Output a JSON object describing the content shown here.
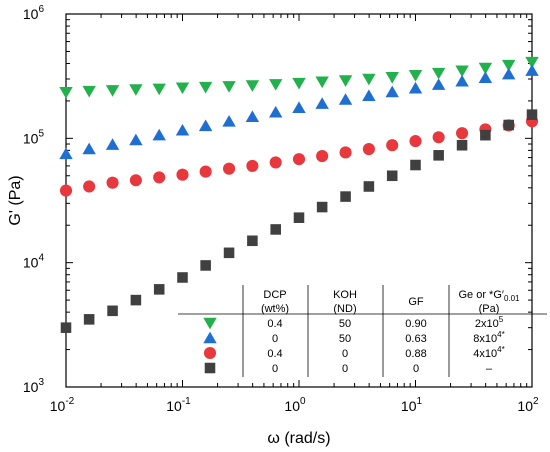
{
  "chart_data": {
    "type": "scatter",
    "xlabel": "ω (rad/s)",
    "ylabel": "G' (Pa)",
    "x_scale": "log",
    "y_scale": "log",
    "xlim": [
      0.01,
      100
    ],
    "ylim": [
      1000,
      1000000
    ],
    "grid": false,
    "x_ticks": [
      "10",
      "10",
      "10",
      "10",
      "10"
    ],
    "x_tick_exponents": [
      "-2",
      "-1",
      "0",
      "1",
      "2"
    ],
    "y_ticks": [
      "10",
      "10",
      "10",
      "10"
    ],
    "y_tick_exponents": [
      "3",
      "4",
      "5",
      "6"
    ],
    "x_values": [
      0.01,
      0.0158,
      0.0251,
      0.0398,
      0.0631,
      0.1,
      0.158,
      0.251,
      0.398,
      0.631,
      1.0,
      1.58,
      2.51,
      3.98,
      6.31,
      10.0,
      15.8,
      25.1,
      39.8,
      63.1,
      100.0
    ],
    "series": [
      {
        "marker": "triangle-down",
        "color": "#22b14c",
        "values": [
          235000,
          240000,
          243000,
          247000,
          250000,
          255000,
          258000,
          262000,
          266000,
          272000,
          278000,
          285000,
          292000,
          300000,
          310000,
          322000,
          335000,
          350000,
          368000,
          388000,
          410000
        ]
      },
      {
        "marker": "triangle-up",
        "color": "#1f6fd1",
        "values": [
          75000,
          82000,
          89000,
          97000,
          106000,
          116000,
          126000,
          137000,
          149000,
          162000,
          176000,
          190000,
          205000,
          220000,
          236000,
          253000,
          270000,
          288000,
          307000,
          328000,
          350000
        ]
      },
      {
        "marker": "circle",
        "color": "#e8373d",
        "values": [
          38000,
          41000,
          44000,
          46000,
          48500,
          51000,
          54000,
          57000,
          60000,
          64000,
          68000,
          72000,
          77000,
          82000,
          88000,
          95000,
          102000,
          110000,
          118000,
          127000,
          137000
        ]
      },
      {
        "marker": "square",
        "color": "#404040",
        "values": [
          3000,
          3500,
          4100,
          5000,
          6100,
          7600,
          9500,
          12000,
          15000,
          18500,
          23000,
          28000,
          34000,
          41000,
          50000,
          61000,
          73000,
          88000,
          106000,
          128000,
          155000
        ]
      }
    ],
    "inset_table": {
      "headers": [
        {
          "line1": "DCP",
          "line2": "(wt%)"
        },
        {
          "line1": "KOH",
          "line2": "(ND)"
        },
        {
          "line1": "GF",
          "line2": ""
        },
        {
          "line1": "Ge or *G′",
          "sub": "0.01",
          "line2": "(Pa)"
        }
      ],
      "rows": [
        {
          "marker": "triangle-down",
          "color": "#22b14c",
          "cells": [
            "0.4",
            "50",
            "0.90",
            "2x10"
          ],
          "sup": "5",
          "suffix": ""
        },
        {
          "marker": "triangle-up",
          "color": "#1f6fd1",
          "cells": [
            "0",
            "50",
            "0.63",
            "8x10"
          ],
          "sup": "4",
          "suffix": "*"
        },
        {
          "marker": "circle",
          "color": "#e8373d",
          "cells": [
            "0.4",
            "0",
            "0.88",
            "4x10"
          ],
          "sup": "4",
          "suffix": "*"
        },
        {
          "marker": "square",
          "color": "#404040",
          "cells": [
            "0",
            "0",
            "0",
            "–"
          ],
          "sup": "",
          "suffix": ""
        }
      ]
    }
  }
}
